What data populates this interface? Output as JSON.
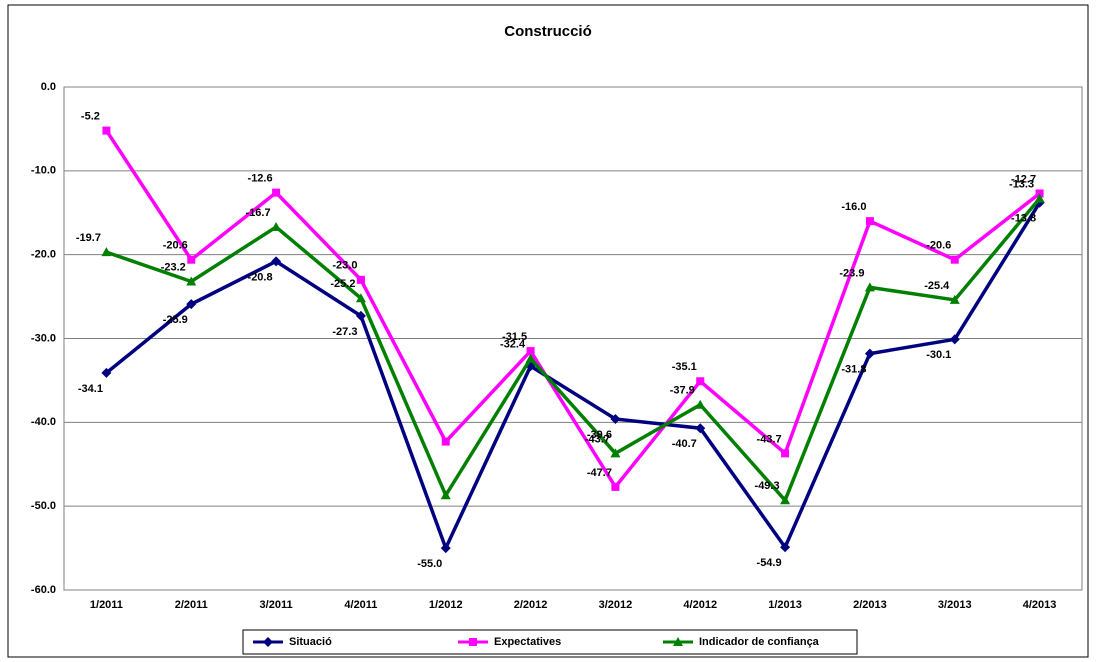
{
  "chart_data": {
    "type": "line",
    "title": "Construcció",
    "categories": [
      "1/2011",
      "2/2011",
      "3/2011",
      "4/2011",
      "1/2012",
      "2/2012",
      "3/2012",
      "4/2012",
      "1/2013",
      "2/2013",
      "3/2013",
      "4/2013"
    ],
    "series": [
      {
        "name": "Situació",
        "color": "#000080",
        "marker": "diamond",
        "values": [
          -34.1,
          -25.9,
          -20.8,
          -27.3,
          -55.0,
          -33.3,
          -39.6,
          -40.7,
          -54.9,
          -31.8,
          -30.1,
          -13.8
        ],
        "value_labels": [
          "-34.1",
          "-25.9",
          "-20.8",
          "-27.3",
          "-55.0",
          null,
          "-39.6",
          "-40.7",
          "-54.9",
          "-31.8",
          "-30.1",
          "-13.8"
        ]
      },
      {
        "name": "Expectatives",
        "color": "#ff00ff",
        "marker": "square",
        "values": [
          -5.2,
          -20.6,
          -12.6,
          -23.0,
          -42.3,
          -31.5,
          -47.7,
          -35.1,
          -43.7,
          -16.0,
          -20.6,
          -12.7
        ],
        "value_labels": [
          "-5.2",
          "-20.6",
          "-12.6",
          "-23.0",
          null,
          "-31.5",
          "-47.7",
          "-35.1",
          "-43.7",
          "-16.0",
          "-20.6",
          "-12.7"
        ]
      },
      {
        "name": "Indicador de confiança",
        "color": "#008000",
        "marker": "triangle",
        "values": [
          -19.7,
          -23.2,
          -16.7,
          -25.2,
          -48.7,
          -32.4,
          -43.7,
          -37.9,
          -49.3,
          -23.9,
          -25.4,
          -13.3
        ],
        "value_labels": [
          "-19.7",
          "-23.2",
          "-16.7",
          "-25.2",
          null,
          "-32.4",
          "-43.7",
          "-37.9",
          "-49.3",
          "-23.9",
          "-25.4",
          "-13.3"
        ]
      }
    ],
    "ylim": [
      -60,
      0
    ],
    "yticks": [
      {
        "value": -60,
        "label": "-60.0"
      },
      {
        "value": -50,
        "label": "-50.0"
      },
      {
        "value": -40,
        "label": "-40.0"
      },
      {
        "value": -30,
        "label": "-30.0"
      },
      {
        "value": -20,
        "label": "-20.0"
      },
      {
        "value": -10,
        "label": "-10.0"
      },
      {
        "value": 0,
        "label": "0.0"
      }
    ],
    "grid": true,
    "legend": "bottom"
  }
}
